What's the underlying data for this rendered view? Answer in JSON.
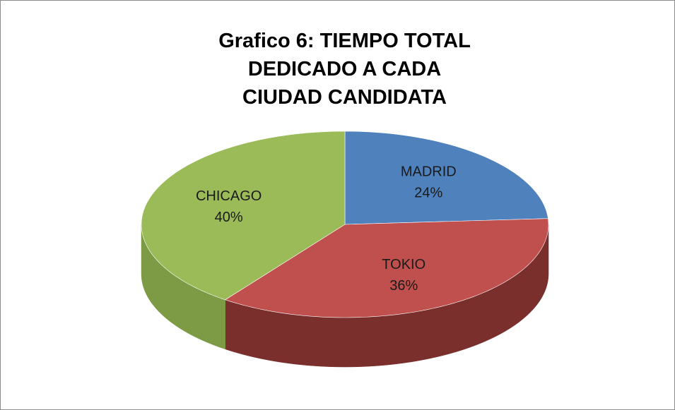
{
  "chart_data": {
    "type": "pie",
    "title": "Grafico 6: TIEMPO TOTAL DEDICADO A CADA CIUDAD CANDIDATA",
    "categories": [
      "MADRID",
      "TOKIO",
      "CHICAGO"
    ],
    "values": [
      24,
      36,
      40
    ],
    "value_labels": [
      "24%",
      "36%",
      "40%"
    ],
    "colors": [
      "#4f81bd",
      "#c0504d",
      "#9bbb59"
    ],
    "side_colors": [
      "#34577f",
      "#7a2f2d",
      "#7d9a45"
    ]
  }
}
